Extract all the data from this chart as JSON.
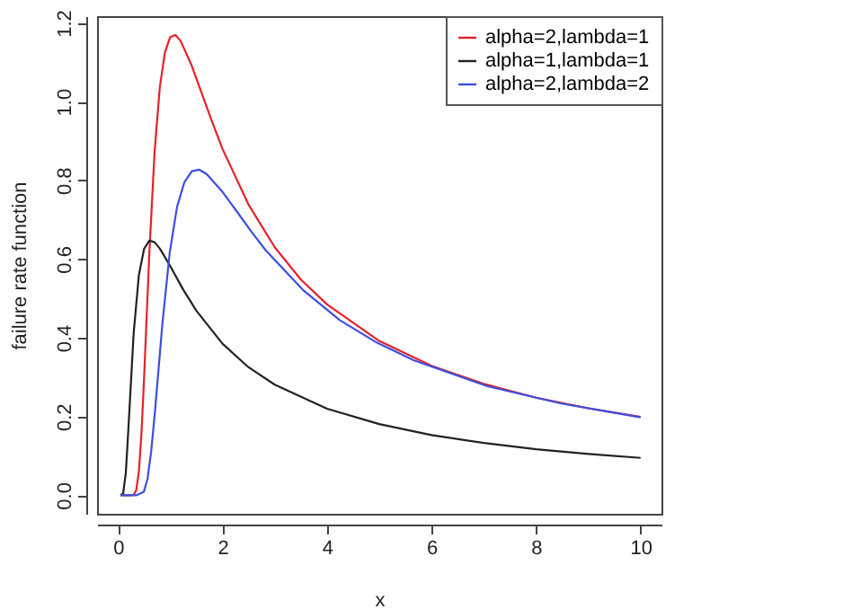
{
  "chart_data": {
    "type": "line",
    "xlabel": "x",
    "ylabel": "failure rate function",
    "xlim": [
      -0.4,
      10.4
    ],
    "ylim": [
      -0.047,
      1.217
    ],
    "xticks": [
      0,
      2,
      4,
      6,
      8,
      10
    ],
    "yticks": [
      {
        "value": 0,
        "label": "0.0"
      },
      0.2,
      0.4,
      0.6,
      0.8,
      {
        "value": 1,
        "label": "1.0"
      },
      1.2
    ],
    "grid": false,
    "legend": "top right",
    "line_style": "solid",
    "marker": "none",
    "series": [
      {
        "name": "alpha=2,lambda=1",
        "color": "#e8202a",
        "x": [
          0.05,
          0.25,
          0.3,
          0.35,
          0.4,
          0.45,
          0.5,
          0.6,
          0.7,
          0.8,
          0.9,
          1.0,
          1.1,
          1.2,
          1.4,
          1.6,
          1.8,
          2,
          2.5,
          3,
          3.5,
          4,
          5,
          6,
          7,
          8,
          9,
          10
        ],
        "values": [
          0,
          0,
          0.001,
          0.013,
          0.06,
          0.158,
          0.299,
          0.614,
          0.871,
          1.036,
          1.126,
          1.164,
          1.169,
          1.154,
          1.095,
          1.022,
          0.949,
          0.88,
          0.738,
          0.63,
          0.548,
          0.485,
          0.392,
          0.329,
          0.283,
          0.248,
          0.221,
          0.199
        ]
      },
      {
        "name": "alpha=1,lambda=1",
        "color": "#222222",
        "x": [
          0.05,
          0.1,
          0.15,
          0.2,
          0.3,
          0.4,
          0.5,
          0.6,
          0.7,
          0.8,
          1,
          1.25,
          1.5,
          2,
          2.5,
          3,
          4,
          5,
          6,
          7,
          8,
          9,
          10
        ],
        "values": [
          0,
          0.005,
          0.057,
          0.17,
          0.411,
          0.559,
          0.626,
          0.647,
          0.643,
          0.627,
          0.582,
          0.522,
          0.469,
          0.385,
          0.325,
          0.281,
          0.22,
          0.181,
          0.153,
          0.133,
          0.117,
          0.105,
          0.095
        ]
      },
      {
        "name": "alpha=2,lambda=2",
        "color": "#3a4fe0",
        "x": [
          0.05,
          0.35,
          0.495,
          0.566,
          0.636,
          0.707,
          0.849,
          0.99,
          1.131,
          1.273,
          1.414,
          1.556,
          1.697,
          1.98,
          2.263,
          2.546,
          2.828,
          3.536,
          4.243,
          4.95,
          5.657,
          7.071,
          8.485,
          10
        ],
        "values": [
          0,
          0,
          0.009,
          0.042,
          0.112,
          0.211,
          0.434,
          0.616,
          0.733,
          0.796,
          0.823,
          0.827,
          0.816,
          0.774,
          0.723,
          0.671,
          0.622,
          0.522,
          0.445,
          0.388,
          0.343,
          0.277,
          0.233,
          0.198
        ]
      }
    ]
  }
}
